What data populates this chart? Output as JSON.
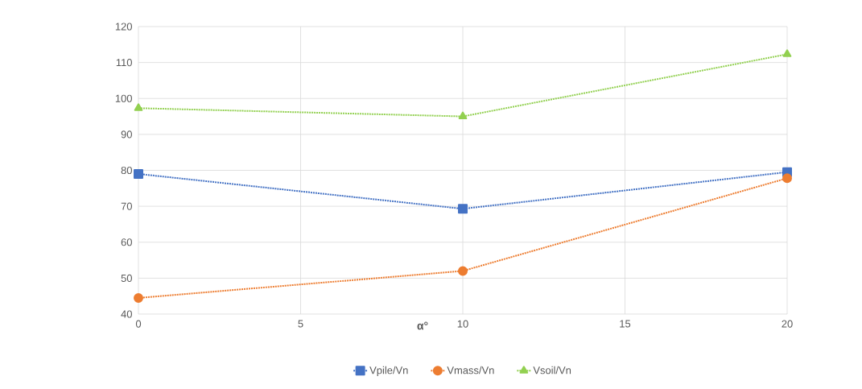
{
  "chart_data": {
    "type": "line",
    "xlabel": "α°",
    "x": [
      0,
      10,
      20
    ],
    "series": [
      {
        "name": "Vpile/Vn",
        "color": "#4472c4",
        "marker": "square",
        "values": [
          79,
          69.3,
          79.5
        ]
      },
      {
        "name": "Vmass/Vn",
        "color": "#ed7d31",
        "marker": "circle",
        "values": [
          44.5,
          52,
          77.8
        ]
      },
      {
        "name": "Vsoil/Vn",
        "color": "#92d050",
        "marker": "triangle",
        "values": [
          97.3,
          95,
          112.3
        ]
      }
    ],
    "xlim": [
      0,
      20
    ],
    "xticks": [
      0,
      5,
      10,
      15,
      20
    ],
    "ylim": [
      40,
      120
    ],
    "yticks": [
      40,
      50,
      60,
      70,
      80,
      90,
      100,
      110,
      120
    ],
    "grid": true,
    "legend": "bottom",
    "line_style": "dotted"
  }
}
